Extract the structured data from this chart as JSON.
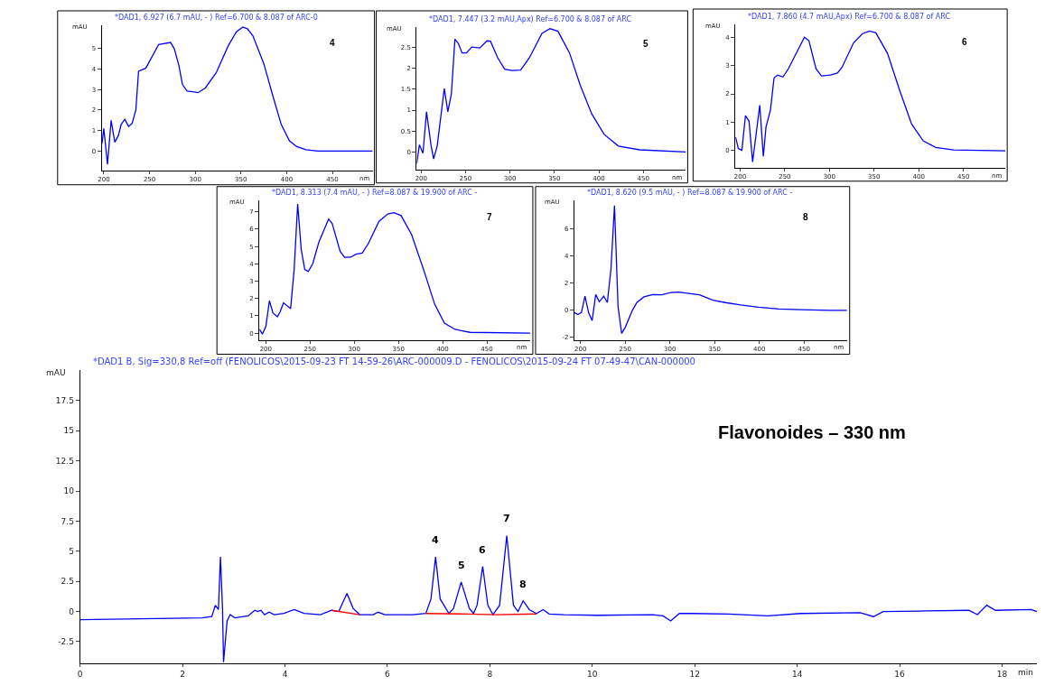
{
  "chart_data": [
    {
      "type": "line",
      "title": "*DAD1, 6.927 (6.7 mAU, - ) Ref=6.700 & 8.087 of ARC-0",
      "xlabel": "nm",
      "ylabel": "mAU",
      "annotations": [
        "4"
      ],
      "grid": false,
      "xlim": [
        197.7,
        494
      ],
      "ylim": [
        -0.94,
        6.14
      ],
      "xticks": [
        200,
        250,
        300,
        350,
        400,
        450
      ],
      "yticks": [
        0,
        1,
        2,
        3,
        4,
        5
      ],
      "series": [
        {
          "color": "#0000ff",
          "x": [
            198,
            200,
            204,
            208,
            212,
            216,
            219,
            223,
            227,
            231,
            235,
            238,
            246,
            260,
            273,
            277,
            282,
            286,
            291,
            297,
            303,
            311,
            323,
            336,
            345,
            352,
            357,
            363,
            375,
            385,
            394,
            403,
            411,
            421,
            434,
            494
          ],
          "values": [
            0.36,
            1.1,
            -0.65,
            1.5,
            0.43,
            0.77,
            1.3,
            1.55,
            1.2,
            1.35,
            2.0,
            3.9,
            4.05,
            5.2,
            5.3,
            5.0,
            4.2,
            3.25,
            2.93,
            2.9,
            2.85,
            3.08,
            3.83,
            5.13,
            5.82,
            6.05,
            5.97,
            5.63,
            4.26,
            2.67,
            1.3,
            0.5,
            0.22,
            0.07,
            0.0,
            0.0
          ]
        }
      ]
    },
    {
      "type": "line",
      "title": "*DAD1, 7.447 (3.2 mAU,Apx) Ref=6.700 & 8.087 of ARC",
      "xlabel": "nm",
      "ylabel": "mAU",
      "annotations": [
        "5"
      ],
      "grid": false,
      "xlim": [
        195,
        498
      ],
      "ylim": [
        -0.42,
        2.99
      ],
      "xticks": [
        200,
        250,
        300,
        350,
        400,
        450
      ],
      "yticks": [
        0,
        0.5,
        1,
        1.5,
        2,
        2.5
      ],
      "series": [
        {
          "color": "#0000ff",
          "x": [
            195,
            198,
            202,
            206,
            211,
            214,
            218,
            226,
            230,
            234,
            238,
            242,
            246,
            251,
            257,
            266,
            274,
            278,
            286,
            294,
            302,
            312,
            322,
            336,
            345,
            354,
            367,
            379,
            392,
            406,
            422,
            446,
            498
          ],
          "values": [
            -0.28,
            0.17,
            -0.03,
            0.96,
            0.17,
            -0.17,
            0.14,
            1.52,
            0.96,
            1.39,
            2.7,
            2.59,
            2.37,
            2.37,
            2.51,
            2.49,
            2.66,
            2.65,
            2.26,
            1.98,
            1.95,
            1.96,
            2.26,
            2.84,
            2.95,
            2.89,
            2.37,
            1.6,
            0.91,
            0.42,
            0.14,
            0.05,
            0.0
          ]
        }
      ]
    },
    {
      "type": "line",
      "title": "*DAD1, 7.860 (4.7 mAU,Apx) Ref=6.700 & 8.087 of ARC",
      "xlabel": "nm",
      "ylabel": "mAU",
      "annotations": [
        "6"
      ],
      "grid": false,
      "xlim": [
        194.7,
        497
      ],
      "ylim": [
        -0.62,
        4.47
      ],
      "xticks": [
        200,
        250,
        300,
        350,
        400,
        450
      ],
      "yticks": [
        0,
        1,
        2,
        3,
        4
      ],
      "series": [
        {
          "color": "#0000ff",
          "x": [
            195,
            198,
            202,
            206,
            210,
            214,
            222,
            226,
            229,
            234,
            238,
            242,
            248,
            254,
            272,
            277,
            285,
            291,
            301,
            309,
            314,
            327,
            337,
            345,
            352,
            365,
            379,
            392,
            405,
            419,
            439,
            497
          ],
          "values": [
            0.46,
            0.06,
            0.0,
            1.23,
            1.03,
            -0.42,
            1.6,
            -0.22,
            0.83,
            1.43,
            2.57,
            2.67,
            2.6,
            2.89,
            4.01,
            3.89,
            2.89,
            2.64,
            2.67,
            2.74,
            2.94,
            3.81,
            4.14,
            4.23,
            4.17,
            3.44,
            2.09,
            0.93,
            0.33,
            0.1,
            0.01,
            -0.02
          ]
        }
      ]
    },
    {
      "type": "line",
      "title": "*DAD1, 8.313 (7.4 mAU, - ) Ref=8.087 & 19.900 of ARC -",
      "xlabel": "nm",
      "ylabel": "mAU",
      "annotations": [
        "7"
      ],
      "grid": false,
      "xlim": [
        192.5,
        499
      ],
      "ylim": [
        -0.38,
        7.67
      ],
      "xticks": [
        200,
        250,
        300,
        350,
        400,
        450
      ],
      "yticks": [
        0,
        1,
        2,
        3,
        4,
        5,
        6,
        7
      ],
      "series": [
        {
          "color": "#0000ff",
          "x": [
            193,
            196,
            200,
            204,
            208,
            213,
            216,
            220,
            228,
            232,
            236,
            240,
            244,
            248,
            253,
            260,
            271,
            275,
            284,
            289,
            296,
            302,
            309,
            316,
            328,
            338,
            345,
            353,
            365,
            379,
            391,
            402,
            414,
            431,
            499
          ],
          "values": [
            0.22,
            -0.05,
            0.38,
            1.87,
            1.17,
            0.95,
            1.22,
            1.75,
            1.42,
            3.67,
            7.45,
            4.83,
            3.67,
            3.55,
            4.0,
            5.25,
            6.58,
            6.33,
            4.72,
            4.37,
            4.38,
            4.55,
            4.62,
            5.17,
            6.45,
            6.87,
            6.95,
            6.78,
            5.67,
            3.58,
            1.67,
            0.58,
            0.22,
            0.05,
            0.0
          ]
        }
      ]
    },
    {
      "type": "line",
      "title": "*DAD1, 8.620 (9.5 mAU, - ) Ref=8.087 & 19.900 of ARC -",
      "xlabel": "nm",
      "ylabel": "mAU",
      "annotations": [
        "8"
      ],
      "grid": false,
      "xlim": [
        193,
        498
      ],
      "ylim": [
        -2.22,
        8.1
      ],
      "xticks": [
        200,
        250,
        300,
        350,
        400,
        450
      ],
      "yticks": [
        -2,
        0,
        2,
        4,
        6
      ],
      "series": [
        {
          "color": "#0000ff",
          "x": [
            193,
            197,
            201,
            205,
            209,
            213,
            217,
            221,
            226,
            230,
            234,
            238,
            242,
            246,
            250,
            258,
            263,
            271,
            281,
            291,
            301,
            310,
            321,
            333,
            348,
            362,
            379,
            399,
            422,
            446,
            479,
            498
          ],
          "values": [
            -0.21,
            -0.36,
            -0.21,
            1.0,
            -0.21,
            -0.8,
            1.12,
            0.59,
            1.0,
            0.53,
            2.97,
            7.69,
            0.21,
            -1.74,
            -1.31,
            -0.04,
            0.53,
            0.95,
            1.12,
            1.1,
            1.27,
            1.31,
            1.21,
            1.1,
            0.7,
            0.53,
            0.36,
            0.19,
            0.06,
            0.0,
            -0.04,
            -0.04
          ]
        }
      ]
    },
    {
      "type": "line",
      "title": "*DAD1 B, Sig=330,8 Ref=off (FENOLICOS\\2015-09-23 FT 14-59-26\\ARC-000009.D - FENOLICOS\\2015-09-24 FT 07-49-47\\CAN-000000",
      "xlabel": "min",
      "ylabel": "mAU",
      "grid": false,
      "annotations": [
        "Flavonoides – 330 nm",
        {
          "text": "4",
          "x": 6.94,
          "y": 4.53
        },
        {
          "text": "5",
          "x": 7.44,
          "y": 2.45
        },
        {
          "text": "6",
          "x": 7.86,
          "y": 3.75
        },
        {
          "text": "7",
          "x": 8.33,
          "y": 6.3
        },
        {
          "text": "8",
          "x": 8.65,
          "y": 0.89
        }
      ],
      "xlim": [
        0,
        18.68
      ],
      "ylim": [
        -4.3,
        20
      ],
      "xticks": [
        0,
        2,
        4,
        6,
        8,
        10,
        12,
        14,
        16,
        18
      ],
      "yticks": [
        -2.5,
        0,
        2.5,
        5,
        7.5,
        10,
        12.5,
        15,
        17.5
      ],
      "series": [
        {
          "color": "#0000ff",
          "x": [
            0,
            2.38,
            2.57,
            2.64,
            2.7,
            2.74,
            2.78,
            2.8,
            2.87,
            2.93,
            3.02,
            3.28,
            3.41,
            3.47,
            3.53,
            3.6,
            3.69,
            3.79,
            3.98,
            4.18,
            4.37,
            4.69,
            4.91,
            5.05,
            5.21,
            5.33,
            5.46,
            5.72,
            5.82,
            5.95,
            6.49,
            6.75,
            6.85,
            6.94,
            7.03,
            7.2,
            7.29,
            7.44,
            7.6,
            7.68,
            7.75,
            7.86,
            7.96,
            8.06,
            8.19,
            8.33,
            8.46,
            8.55,
            8.65,
            8.77,
            8.91,
            9.04,
            9.16,
            9.45,
            10.09,
            11.18,
            11.38,
            11.53,
            11.7,
            11.95,
            12.66,
            13.43,
            14.07,
            15.23,
            15.49,
            15.68,
            16.52,
            17.35,
            17.52,
            17.7,
            17.87,
            18.57,
            18.68
          ],
          "values": [
            -0.68,
            -0.52,
            -0.42,
            0.52,
            0.16,
            4.53,
            0.26,
            -4.2,
            -0.78,
            -0.26,
            -0.52,
            -0.36,
            0.1,
            0.0,
            0.1,
            -0.26,
            -0.05,
            -0.26,
            -0.16,
            0.16,
            -0.16,
            -0.26,
            0.1,
            0.0,
            1.51,
            0.26,
            -0.26,
            -0.26,
            -0.05,
            -0.26,
            -0.26,
            -0.16,
            1.04,
            4.53,
            1.04,
            -0.16,
            0.26,
            2.45,
            0.26,
            -0.16,
            0.52,
            3.75,
            0.52,
            -0.26,
            0.52,
            6.3,
            0.52,
            0.0,
            0.89,
            0.16,
            -0.16,
            0.16,
            -0.21,
            -0.26,
            -0.31,
            -0.26,
            -0.36,
            -0.78,
            -0.16,
            -0.16,
            -0.21,
            -0.36,
            -0.16,
            -0.1,
            -0.42,
            0.0,
            0.05,
            0.1,
            -0.26,
            0.52,
            0.1,
            0.16,
            0.0
          ]
        },
        {
          "color": "#ff0000",
          "x": [
            4.91,
            5.46,
            5.6,
            6.75,
            7.6,
            8.1,
            8.91
          ],
          "values": [
            0.1,
            -0.26,
            null,
            -0.16,
            -0.21,
            -0.26,
            -0.2
          ]
        }
      ]
    }
  ]
}
